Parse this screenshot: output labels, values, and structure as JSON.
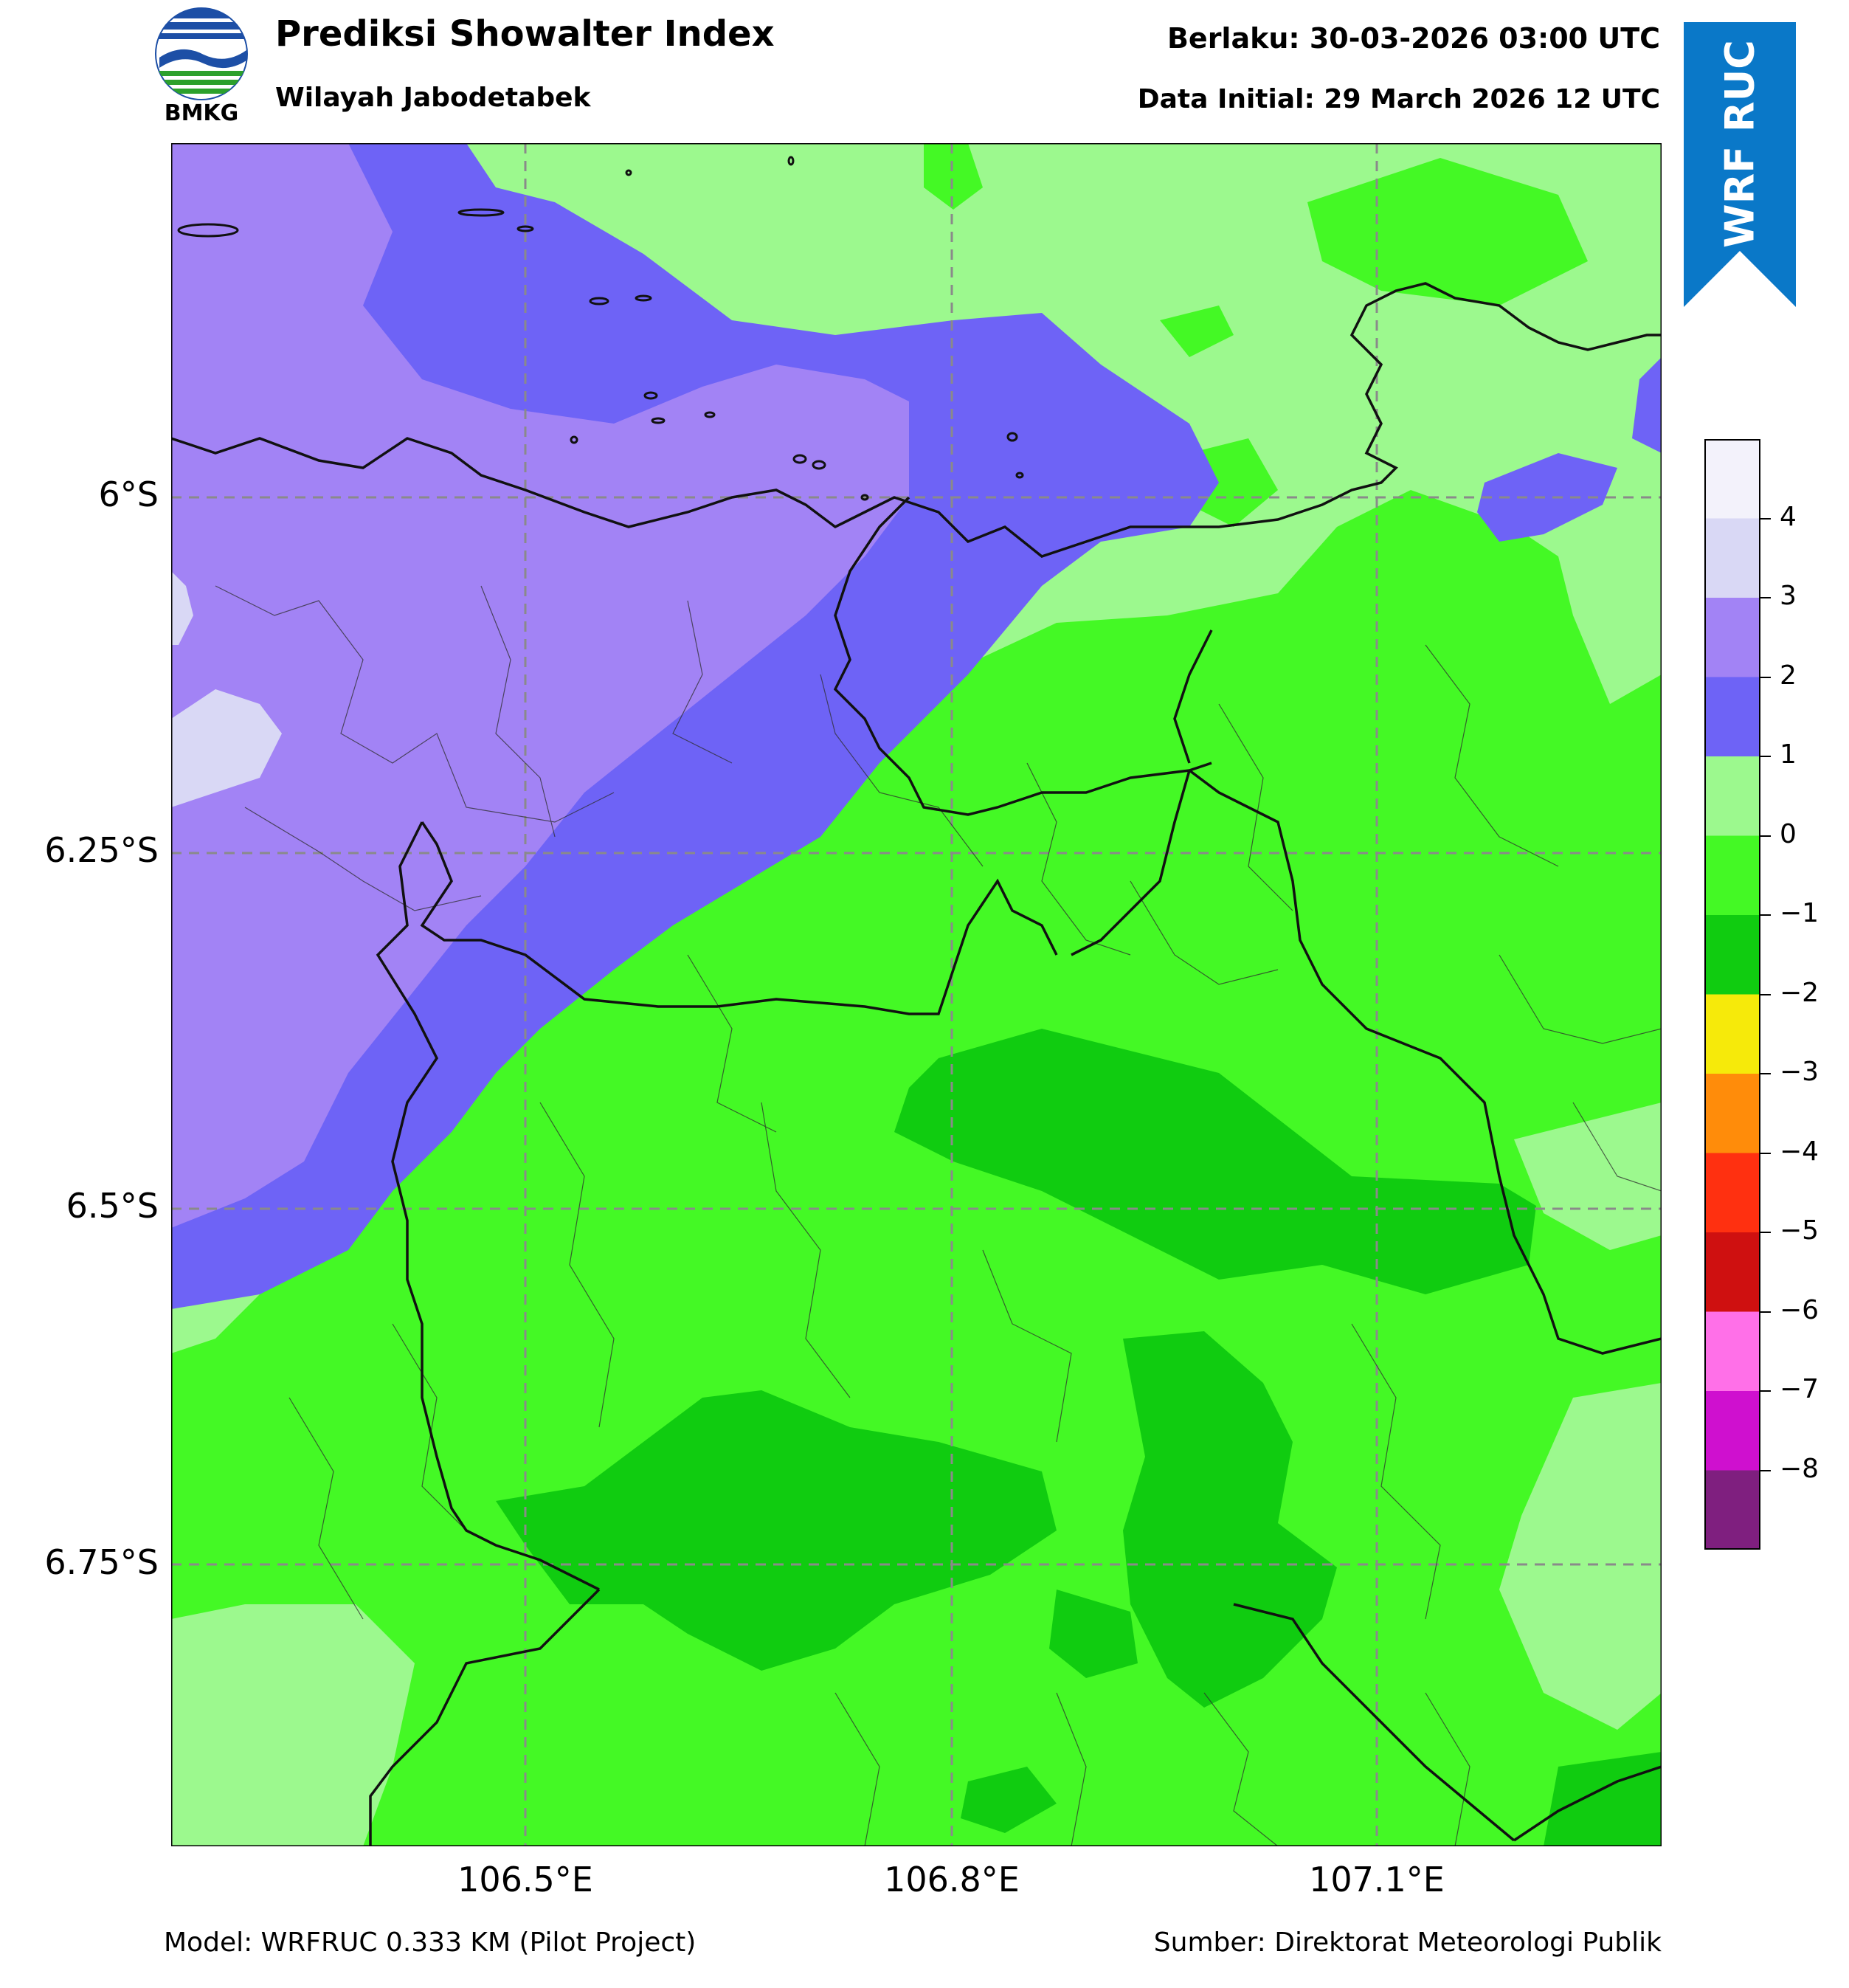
{
  "header": {
    "logo_text": "BMKG",
    "title": "Prediksi Showalter Index",
    "subtitle": "Wilayah Jabodetabek",
    "valid_time": "Berlaku: 30-03-2026 03:00 UTC",
    "data_initial": "Data Initial: 29 March 2026 12 UTC",
    "ribbon_label": "WRF RUC"
  },
  "map": {
    "lat_labels": [
      "6°S",
      "6.25°S",
      "6.5°S",
      "6.75°S"
    ],
    "lon_labels": [
      "106.5°E",
      "106.8°E",
      "107.1°E"
    ],
    "gridlines": "dashed",
    "region": "Jabodetabek"
  },
  "colorbar": {
    "tick_labels": [
      "4",
      "3",
      "2",
      "1",
      "0",
      "−1",
      "−2",
      "−3",
      "−4",
      "−5",
      "−6",
      "−7",
      "−8"
    ],
    "colors": [
      "#f3f2fb",
      "#d9d8f5",
      "#a283f5",
      "#6e63f6",
      "#9cf98e",
      "#44f925",
      "#10cc10",
      "#f6ea0a",
      "#ff8c0a",
      "#ff3010",
      "#cf1010",
      "#ff70e8",
      "#cf10cf",
      "#7f1f7f"
    ]
  },
  "footer": {
    "model": "Model: WRFRUC 0.333 KM (Pilot Project)",
    "source": "Sumber: Direktorat Meteorologi Publik"
  }
}
